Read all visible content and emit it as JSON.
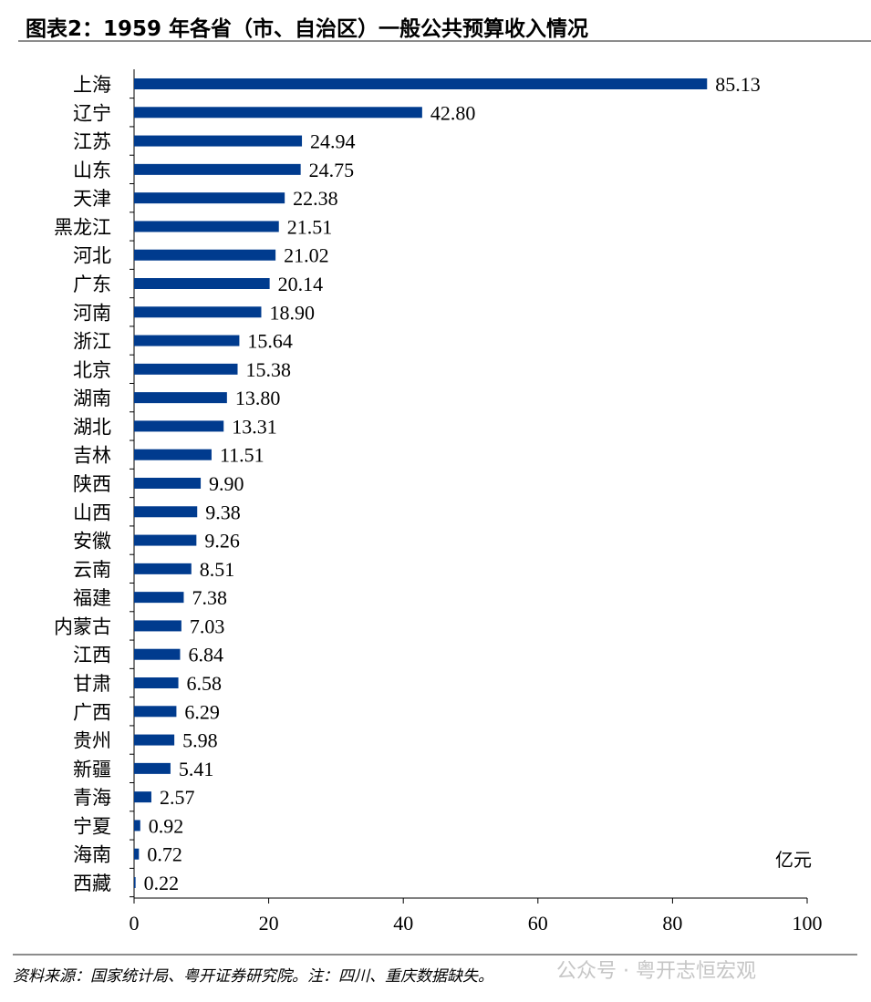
{
  "title": "图表2：1959 年各省（市、自治区）一般公共预算收入情况",
  "source": "资料来源：国家统计局、粤开证券研究院。注：四川、重庆数据缺失。",
  "watermark": "公众号 · 粤开志恒宏观",
  "colors": {
    "bar": "#003B8E",
    "axis": "#000000"
  },
  "chart_data": {
    "type": "bar",
    "orientation": "horizontal",
    "title": "图表2：1959 年各省（市、自治区）一般公共预算收入情况",
    "unit_label": "亿元",
    "categories": [
      "上海",
      "辽宁",
      "江苏",
      "山东",
      "天津",
      "黑龙江",
      "河北",
      "广东",
      "河南",
      "浙江",
      "北京",
      "湖南",
      "湖北",
      "吉林",
      "陕西",
      "山西",
      "安徽",
      "云南",
      "福建",
      "内蒙古",
      "江西",
      "甘肃",
      "广西",
      "贵州",
      "新疆",
      "青海",
      "宁夏",
      "海南",
      "西藏"
    ],
    "values": [
      85.13,
      42.8,
      24.94,
      24.75,
      22.38,
      21.51,
      21.02,
      20.14,
      18.9,
      15.64,
      15.38,
      13.8,
      13.31,
      11.51,
      9.9,
      9.38,
      9.26,
      8.51,
      7.38,
      7.03,
      6.84,
      6.58,
      6.29,
      5.98,
      5.41,
      2.57,
      0.92,
      0.72,
      0.22
    ],
    "value_labels": [
      "85.13",
      "42.80",
      "24.94",
      "24.75",
      "22.38",
      "21.51",
      "21.02",
      "20.14",
      "18.90",
      "15.64",
      "15.38",
      "13.80",
      "13.31",
      "11.51",
      "9.90",
      "9.38",
      "9.26",
      "8.51",
      "7.38",
      "7.03",
      "6.84",
      "6.58",
      "6.29",
      "5.98",
      "5.41",
      "2.57",
      "0.92",
      "0.72",
      "0.22"
    ],
    "xlim": [
      0,
      100
    ],
    "xticks": [
      "0",
      "20",
      "40",
      "60",
      "80",
      "100"
    ],
    "grid": false,
    "legend": "none"
  }
}
